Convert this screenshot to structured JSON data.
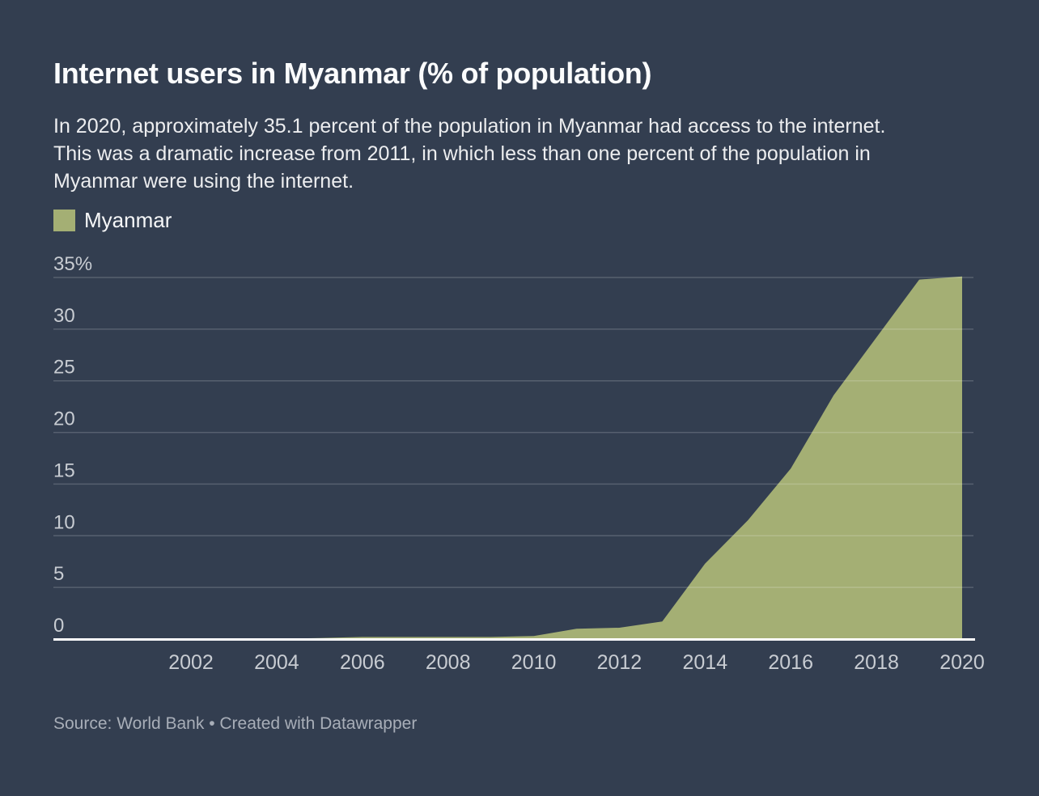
{
  "page": {
    "background_color": "#333E50"
  },
  "header": {
    "title": "Internet users in Myanmar (% of population)",
    "description_lines": [
      "In 2020, approximately 35.1 percent of the population in Myanmar had access to the internet.",
      "This was a dramatic increase from 2011, in which less than one percent of the population in",
      "Myanmar were using the internet."
    ]
  },
  "legend": {
    "label": "Myanmar",
    "swatch_color": "#A4AF74"
  },
  "footer": {
    "source_text": "Source: World Bank • Created with ",
    "credit_link": "Datawrapper"
  },
  "chart_data": {
    "type": "area",
    "title": "Internet users in Myanmar (% of population)",
    "xlabel": "",
    "ylabel": "",
    "x": [
      2000,
      2001,
      2002,
      2003,
      2004,
      2005,
      2006,
      2007,
      2008,
      2009,
      2010,
      2011,
      2012,
      2013,
      2014,
      2015,
      2016,
      2017,
      2018,
      2019,
      2020
    ],
    "series": [
      {
        "name": "Myanmar",
        "color": "#A4AF74",
        "values": [
          0,
          0,
          0,
          0,
          0,
          0.1,
          0.2,
          0.2,
          0.2,
          0.2,
          0.3,
          1.0,
          1.1,
          1.7,
          7.3,
          11.5,
          16.5,
          23.6,
          29.2,
          34.8,
          35.1
        ]
      }
    ],
    "yticks": [
      {
        "v": 0,
        "label": "0"
      },
      {
        "v": 5,
        "label": "5"
      },
      {
        "v": 10,
        "label": "10"
      },
      {
        "v": 15,
        "label": "15"
      },
      {
        "v": 20,
        "label": "20"
      },
      {
        "v": 25,
        "label": "25"
      },
      {
        "v": 30,
        "label": "30"
      },
      {
        "v": 35,
        "label": "35%"
      }
    ],
    "xticks": [
      {
        "v": 2002,
        "label": "2002"
      },
      {
        "v": 2004,
        "label": "2004"
      },
      {
        "v": 2006,
        "label": "2006"
      },
      {
        "v": 2008,
        "label": "2008"
      },
      {
        "v": 2010,
        "label": "2010"
      },
      {
        "v": 2012,
        "label": "2012"
      },
      {
        "v": 2014,
        "label": "2014"
      },
      {
        "v": 2016,
        "label": "2016"
      },
      {
        "v": 2018,
        "label": "2018"
      },
      {
        "v": 2020,
        "label": "2020"
      }
    ],
    "xlim": [
      1998.8,
      2020.3
    ],
    "ylim": [
      0,
      37
    ],
    "grid": true,
    "legend_position": "top-left",
    "colors": {
      "grid": "rgba(255,255,255,0.18)",
      "axis_line": "#FFFFFF",
      "tick_label": "#C8CCD2"
    }
  }
}
